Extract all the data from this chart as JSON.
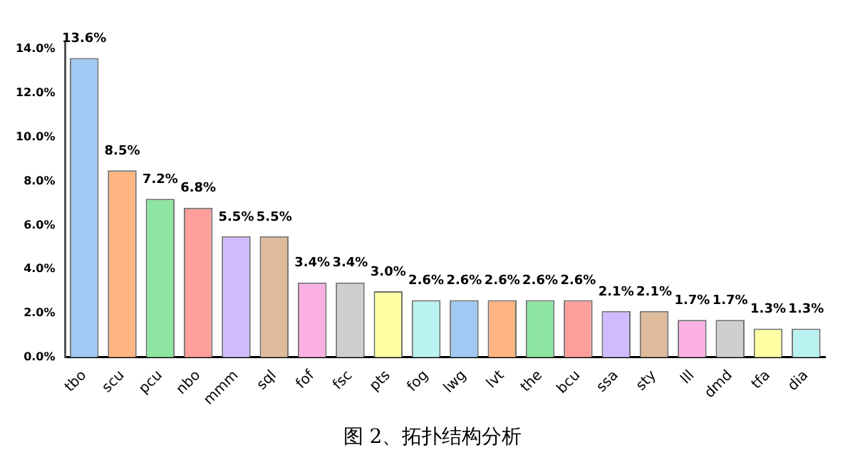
{
  "chart_data": {
    "type": "bar",
    "categories": [
      "tbo",
      "scu",
      "pcu",
      "nbo",
      "mmm",
      "sql",
      "fof",
      "fsc",
      "pts",
      "fog",
      "lwg",
      "lvt",
      "the",
      "bcu",
      "ssa",
      "sty",
      "lll",
      "dmd",
      "tfa",
      "dia"
    ],
    "values": [
      13.6,
      8.5,
      7.2,
      6.8,
      5.5,
      5.5,
      3.4,
      3.4,
      3.0,
      2.6,
      2.6,
      2.6,
      2.6,
      2.6,
      2.1,
      2.1,
      1.7,
      1.7,
      1.3,
      1.3
    ],
    "value_labels": [
      "13.6%",
      "8.5%",
      "7.2%",
      "6.8%",
      "5.5%",
      "5.5%",
      "3.4%",
      "3.4%",
      "3.0%",
      "2.6%",
      "2.6%",
      "2.6%",
      "2.6%",
      "2.6%",
      "2.1%",
      "2.1%",
      "1.7%",
      "1.7%",
      "1.3%",
      "1.3%"
    ],
    "colors": [
      "#a1c9f4",
      "#ffb482",
      "#8de5a1",
      "#ff9f9b",
      "#d0bbff",
      "#debb9b",
      "#fab0e4",
      "#cfcfcf",
      "#fffea3",
      "#b9f2f0",
      "#a1c9f4",
      "#ffb482",
      "#8de5a1",
      "#ff9f9b",
      "#d0bbff",
      "#debb9b",
      "#fab0e4",
      "#cfcfcf",
      "#fffea3",
      "#b9f2f0"
    ],
    "ylim": [
      0,
      14.3
    ],
    "yticks": [
      {
        "value": 0,
        "label": "0.0%"
      },
      {
        "value": 2,
        "label": "2.0%"
      },
      {
        "value": 4,
        "label": "4.0%"
      },
      {
        "value": 6,
        "label": "6.0%"
      },
      {
        "value": 8,
        "label": "8.0%"
      },
      {
        "value": 10,
        "label": "10.0%"
      },
      {
        "value": 12,
        "label": "12.0%"
      },
      {
        "value": 14,
        "label": "14.0%"
      }
    ],
    "grid": false,
    "legend": false,
    "annotations": [
      "图 2、拓扑结构分析"
    ]
  }
}
